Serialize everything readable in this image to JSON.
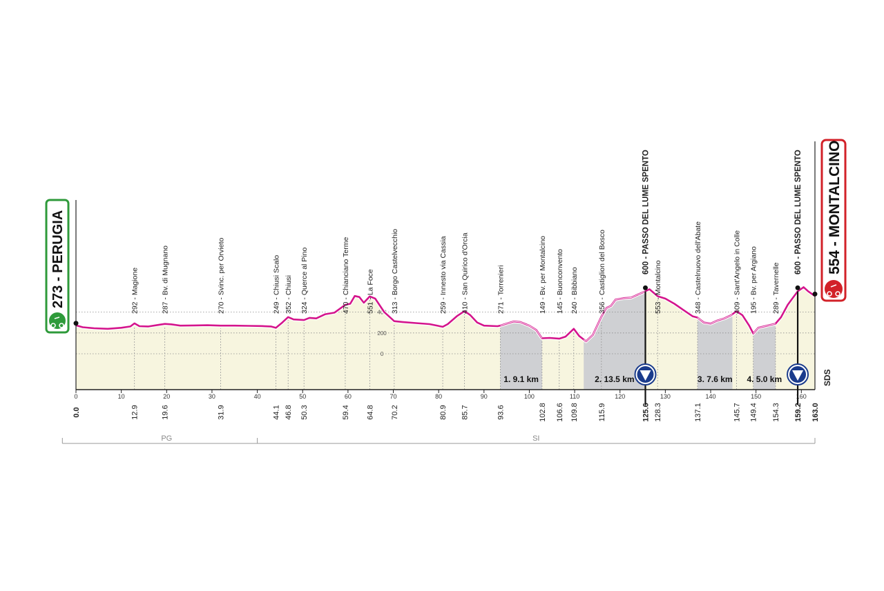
{
  "chart_data": {
    "type": "area",
    "xlim": [
      0,
      163
    ],
    "ylim": [
      0,
      700
    ],
    "x_ticks": [
      0,
      10,
      20,
      30,
      40,
      50,
      60,
      70,
      80,
      90,
      100,
      110,
      120,
      130,
      140,
      150,
      160
    ],
    "y_ticks": [
      0,
      200,
      400
    ],
    "start": {
      "name": "PERUGIA",
      "altitude": "273",
      "label": "273 - PERUGIA",
      "color": "#2e9a3a"
    },
    "finish": {
      "name": "MONTALCINO",
      "altitude": "554",
      "label": "554 - MONTALCINO",
      "color": "#d22128"
    },
    "waypoints": [
      {
        "km": 0.0,
        "km_label": "0.0",
        "label": "",
        "bold": true
      },
      {
        "km": 12.9,
        "km_label": "12.9",
        "label": "292 - Magione",
        "bold": false
      },
      {
        "km": 19.6,
        "km_label": "19.6",
        "label": "287 - Bv. di Mugnano",
        "bold": false
      },
      {
        "km": 31.9,
        "km_label": "31.9",
        "label": "270 - Svinc. per Orvieto",
        "bold": false
      },
      {
        "km": 44.1,
        "km_label": "44.1",
        "label": "249 - Chiusi Scalo",
        "bold": false
      },
      {
        "km": 46.8,
        "km_label": "46.8",
        "label": "352 - Chiusi",
        "bold": false
      },
      {
        "km": 50.3,
        "km_label": "50.3",
        "label": "324 - Querce al Pino",
        "bold": false
      },
      {
        "km": 59.4,
        "km_label": "59.4",
        "label": "470 - Chianciano Terme",
        "bold": false
      },
      {
        "km": 64.8,
        "km_label": "64.8",
        "label": "551 - La Foce",
        "bold": false
      },
      {
        "km": 70.2,
        "km_label": "70.2",
        "label": "313 - Borgo Castelvecchio",
        "bold": false
      },
      {
        "km": 80.9,
        "km_label": "80.9",
        "label": "259 - Innesto via Cassia",
        "bold": false
      },
      {
        "km": 85.7,
        "km_label": "85.7",
        "label": "410 - San Quirico d'Orcia",
        "bold": false
      },
      {
        "km": 93.6,
        "km_label": "93.6",
        "label": "271 - Torrenieri",
        "bold": false
      },
      {
        "km": 102.8,
        "km_label": "102.8",
        "label": "149 - Bv. per Montalcino",
        "bold": false
      },
      {
        "km": 106.6,
        "km_label": "106.6",
        "label": "145 - Buonconvento",
        "bold": false
      },
      {
        "km": 109.8,
        "km_label": "109.8",
        "label": "240 - Bibbiano",
        "bold": false
      },
      {
        "km": 115.9,
        "km_label": "115.9",
        "label": "356 - Castiglion del Bosco",
        "bold": false
      },
      {
        "km": 125.6,
        "km_label": "125.6",
        "label": "600 - PASSO DEL LUME SPENTO",
        "bold": true
      },
      {
        "km": 128.3,
        "km_label": "128.3",
        "label": "553 - Montalcino",
        "bold": false
      },
      {
        "km": 137.1,
        "km_label": "137.1",
        "label": "348 - Castelnuovo dell'Abate",
        "bold": false
      },
      {
        "km": 145.7,
        "km_label": "145.7",
        "label": "409 - Sant'Angelo in Colle",
        "bold": false
      },
      {
        "km": 149.4,
        "km_label": "149.4",
        "label": "195 - Bv. per Argiano",
        "bold": false
      },
      {
        "km": 154.3,
        "km_label": "154.3",
        "label": "289 - Tavernelle",
        "bold": false
      },
      {
        "km": 159.2,
        "km_label": "159.2",
        "label": "600 - PASSO DEL LUME SPENTO",
        "bold": true
      },
      {
        "km": 163.0,
        "km_label": "163.0",
        "label": "",
        "bold": true
      }
    ],
    "gravel_sectors": [
      {
        "label": "1. 9.1 km",
        "from": 93.6,
        "to": 102.8
      },
      {
        "label": "2. 13.5 km",
        "from": 112.0,
        "to": 125.6
      },
      {
        "label": "3. 7.6 km",
        "from": 137.1,
        "to": 144.8
      },
      {
        "label": "4. 5.0 km",
        "from": 149.4,
        "to": 154.3
      }
    ],
    "kom_points": [
      125.6,
      159.2
    ],
    "profile": [
      [
        0,
        273
      ],
      [
        1.5,
        255
      ],
      [
        4,
        245
      ],
      [
        7,
        240
      ],
      [
        10,
        250
      ],
      [
        12,
        262
      ],
      [
        12.9,
        292
      ],
      [
        14,
        265
      ],
      [
        16,
        262
      ],
      [
        18,
        276
      ],
      [
        19.6,
        287
      ],
      [
        21,
        283
      ],
      [
        23,
        270
      ],
      [
        26,
        272
      ],
      [
        29,
        274
      ],
      [
        31.9,
        270
      ],
      [
        35,
        270
      ],
      [
        38,
        268
      ],
      [
        41,
        266
      ],
      [
        43,
        262
      ],
      [
        44.1,
        249
      ],
      [
        45.5,
        300
      ],
      [
        46.8,
        352
      ],
      [
        48,
        330
      ],
      [
        50.3,
        324
      ],
      [
        51.5,
        345
      ],
      [
        53,
        340
      ],
      [
        55,
        380
      ],
      [
        57,
        395
      ],
      [
        59.4,
        470
      ],
      [
        60.5,
        480
      ],
      [
        61.5,
        555
      ],
      [
        62.5,
        545
      ],
      [
        63.5,
        490
      ],
      [
        64.8,
        551
      ],
      [
        66,
        530
      ],
      [
        68,
        400
      ],
      [
        70.2,
        313
      ],
      [
        72,
        305
      ],
      [
        75,
        295
      ],
      [
        78,
        285
      ],
      [
        80.9,
        259
      ],
      [
        82,
        285
      ],
      [
        84,
        360
      ],
      [
        85.7,
        410
      ],
      [
        87,
        370
      ],
      [
        88.5,
        300
      ],
      [
        90,
        270
      ],
      [
        93,
        265
      ],
      [
        93.6,
        271
      ],
      [
        95,
        290
      ],
      [
        96.5,
        310
      ],
      [
        98,
        305
      ],
      [
        100,
        270
      ],
      [
        101.5,
        230
      ],
      [
        102.8,
        149
      ],
      [
        104.5,
        152
      ],
      [
        106.6,
        145
      ],
      [
        108,
        165
      ],
      [
        109.8,
        240
      ],
      [
        111,
        170
      ],
      [
        112.5,
        120
      ],
      [
        114,
        180
      ],
      [
        115.9,
        356
      ],
      [
        117,
        440
      ],
      [
        118,
        460
      ],
      [
        119,
        520
      ],
      [
        121,
        535
      ],
      [
        122.5,
        540
      ],
      [
        124,
        570
      ],
      [
        125.6,
        600
      ],
      [
        126.5,
        620
      ],
      [
        128.3,
        553
      ],
      [
        130,
        530
      ],
      [
        132,
        480
      ],
      [
        134,
        420
      ],
      [
        136,
        360
      ],
      [
        137.1,
        348
      ],
      [
        138.5,
        300
      ],
      [
        140,
        290
      ],
      [
        141.5,
        320
      ],
      [
        143,
        340
      ],
      [
        144.5,
        370
      ],
      [
        145.7,
        409
      ],
      [
        147,
        370
      ],
      [
        148.5,
        270
      ],
      [
        149.4,
        195
      ],
      [
        150.5,
        250
      ],
      [
        152.5,
        270
      ],
      [
        154.3,
        289
      ],
      [
        155.5,
        350
      ],
      [
        157,
        470
      ],
      [
        158,
        530
      ],
      [
        159.2,
        600
      ],
      [
        160.5,
        640
      ],
      [
        161.5,
        600
      ],
      [
        163,
        554
      ]
    ],
    "regions": [
      {
        "label": "PG",
        "from": 0,
        "to": 40
      },
      {
        "label": "SI",
        "from": 40,
        "to": 163
      }
    ],
    "brand": "SDS"
  }
}
